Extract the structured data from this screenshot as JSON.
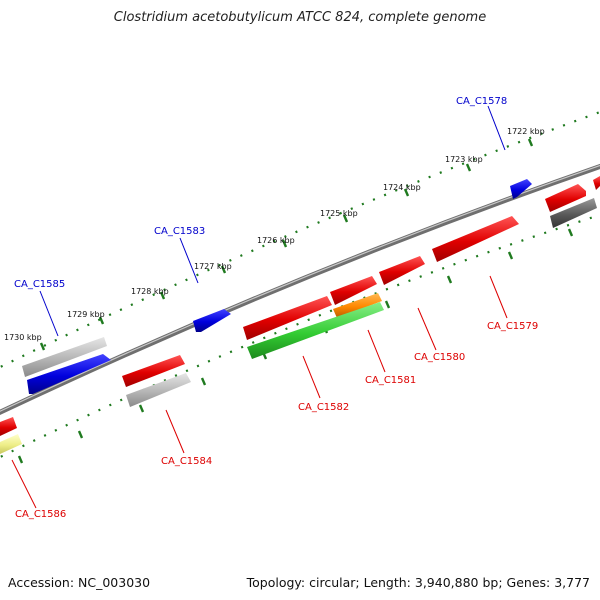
{
  "title": "Clostridium acetobutylicum ATCC 824, complete genome",
  "footer": {
    "accession": "Accession: NC_003030",
    "summary": "Topology: circular; Length: 3,940,880 bp; Genes: 3,777"
  },
  "colors": {
    "backbone": "#7a7a7a",
    "tick": "#1f7a1f",
    "forward_label": "#0000cc",
    "reverse_label": "#dd0000",
    "leader_blue": "#0000cc",
    "leader_red": "#dd0000"
  },
  "scale_labels": [
    "1722 kbp",
    "1723 kbp",
    "1724 kbp",
    "1725 kbp",
    "1726 kbp",
    "1727 kbp",
    "1728 kbp",
    "1729 kbp",
    "1730 kbp"
  ],
  "gene_labels": {
    "forward": [
      "CA_C1578",
      "CA_C1583",
      "CA_C1585"
    ],
    "reverse": [
      "CA_C1579",
      "CA_C1580",
      "CA_C1581",
      "CA_C1582",
      "CA_C1584",
      "CA_C1586"
    ]
  },
  "features": [
    {
      "id": "CA_C1578",
      "strand": "forward",
      "color": "#0000dd"
    },
    {
      "id": "CA_C1583",
      "strand": "forward",
      "color": "#0000dd"
    },
    {
      "id": "CA_C1585",
      "strand": "forward",
      "color": "#0000dd"
    },
    {
      "id": "CA_C1579",
      "strand": "reverse",
      "color": "#ee1111"
    },
    {
      "id": "CA_C1580",
      "strand": "reverse",
      "color": "#ee1111"
    },
    {
      "id": "CA_C1581",
      "strand": "reverse",
      "color": "#ff8800"
    },
    {
      "id": "CA_C1582",
      "strand": "reverse",
      "color": "#33cc33"
    },
    {
      "id": "CA_C1584",
      "strand": "reverse",
      "color": "#ee1111"
    },
    {
      "id": "CA_C1586",
      "strand": "reverse",
      "color": "#eeee88"
    }
  ]
}
